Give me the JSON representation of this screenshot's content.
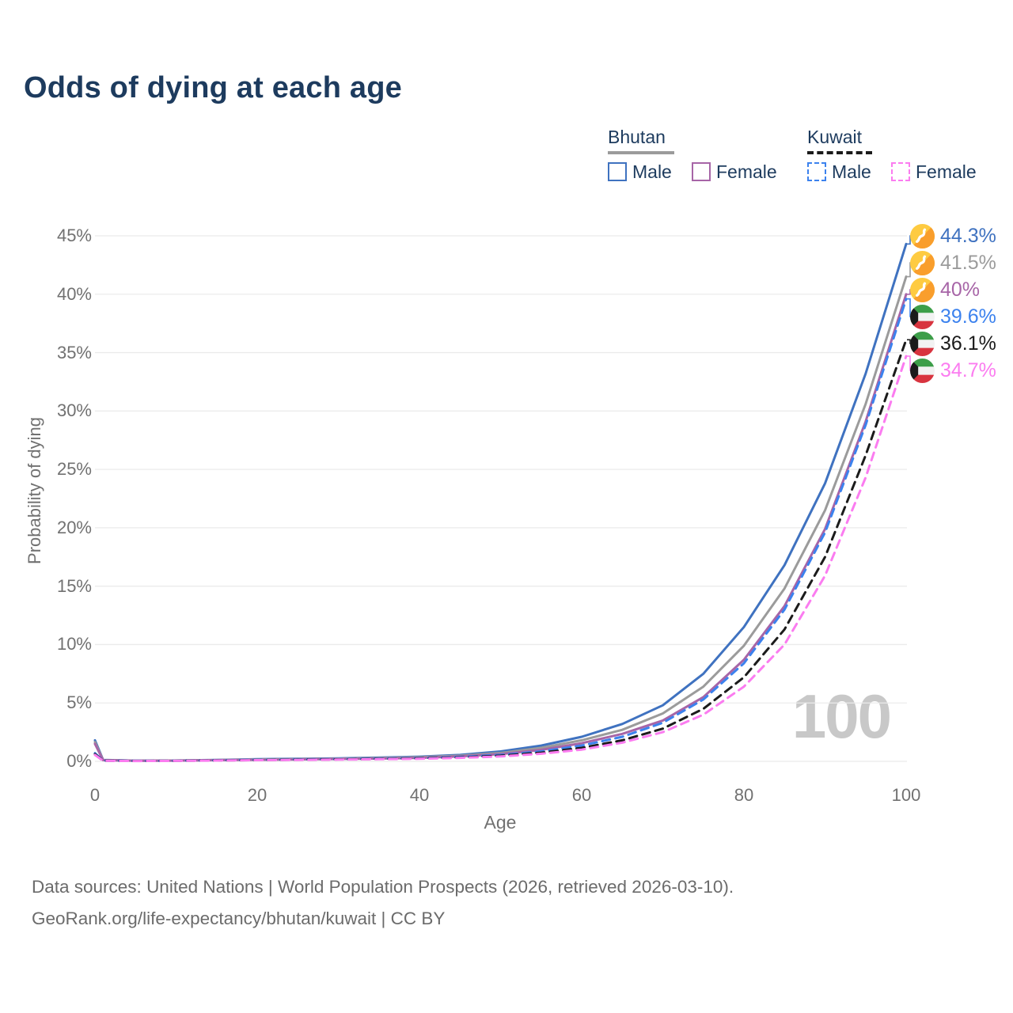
{
  "title": "Odds of dying at each age",
  "legend": {
    "groups": [
      {
        "name": "Bhutan",
        "line_style": "solid",
        "underline_color": "#9b9b9b",
        "items": [
          {
            "label": "Male",
            "color": "#3f72c0"
          },
          {
            "label": "Female",
            "color": "#a765a7"
          }
        ]
      },
      {
        "name": "Kuwait",
        "line_style": "dashed",
        "underline_color": "#1b1b1b",
        "items": [
          {
            "label": "Male",
            "color": "#3c82ee"
          },
          {
            "label": "Female",
            "color": "#fb7cf0"
          }
        ]
      }
    ]
  },
  "chart_data": {
    "type": "line",
    "title": "Odds of dying at each age",
    "xlabel": "Age",
    "ylabel": "Probability of dying",
    "xlim": [
      0,
      100
    ],
    "ylim": [
      0,
      45
    ],
    "x_ticks": [
      0,
      20,
      40,
      60,
      80,
      100
    ],
    "y_ticks": [
      0,
      5,
      10,
      15,
      20,
      25,
      30,
      35,
      40,
      45
    ],
    "y_tick_suffix": "%",
    "grid": "horizontal",
    "legend_position": "top-right",
    "watermark": "100",
    "ages": [
      0,
      1,
      5,
      10,
      15,
      20,
      25,
      30,
      35,
      40,
      45,
      50,
      55,
      60,
      65,
      70,
      75,
      80,
      85,
      90,
      95,
      100
    ],
    "series": [
      {
        "name": "Bhutan Male",
        "country": "Bhutan",
        "sex": "Male",
        "color": "#3f72c0",
        "dash": "solid",
        "flag": "bhutan",
        "end_label": "44.3%",
        "values": [
          1.8,
          0.12,
          0.06,
          0.07,
          0.12,
          0.18,
          0.22,
          0.26,
          0.32,
          0.4,
          0.55,
          0.85,
          1.35,
          2.1,
          3.2,
          4.8,
          7.5,
          11.5,
          16.8,
          23.8,
          33.2,
          44.3
        ]
      },
      {
        "name": "Bhutan Both sexes",
        "country": "Bhutan",
        "sex": "Both",
        "color": "#9b9b9b",
        "dash": "solid",
        "flag": "bhutan",
        "end_label": "41.5%",
        "values": [
          1.65,
          0.11,
          0.055,
          0.065,
          0.11,
          0.16,
          0.19,
          0.23,
          0.28,
          0.35,
          0.48,
          0.72,
          1.15,
          1.8,
          2.7,
          4.1,
          6.4,
          9.9,
          14.8,
          21.5,
          30.6,
          41.5
        ]
      },
      {
        "name": "Bhutan Female",
        "country": "Bhutan",
        "sex": "Female",
        "color": "#a765a7",
        "dash": "solid",
        "flag": "bhutan",
        "end_label": "40%",
        "values": [
          1.5,
          0.1,
          0.05,
          0.06,
          0.1,
          0.13,
          0.16,
          0.2,
          0.24,
          0.3,
          0.42,
          0.62,
          0.98,
          1.55,
          2.35,
          3.5,
          5.5,
          8.7,
          13.3,
          19.9,
          29.1,
          40
        ]
      },
      {
        "name": "Kuwait Male",
        "country": "Kuwait",
        "sex": "Male",
        "color": "#3c82ee",
        "dash": "dashed",
        "flag": "kuwait",
        "end_label": "39.6%",
        "values": [
          0.7,
          0.06,
          0.04,
          0.05,
          0.09,
          0.13,
          0.16,
          0.19,
          0.23,
          0.28,
          0.38,
          0.55,
          0.85,
          1.35,
          2.1,
          3.3,
          5.3,
          8.4,
          13.0,
          19.6,
          28.8,
          39.6
        ]
      },
      {
        "name": "Kuwait Both sexes",
        "country": "Kuwait",
        "sex": "Both",
        "color": "#1b1b1b",
        "dash": "dashed",
        "flag": "kuwait",
        "end_label": "36.1%",
        "values": [
          0.62,
          0.055,
          0.035,
          0.045,
          0.08,
          0.11,
          0.14,
          0.17,
          0.2,
          0.25,
          0.33,
          0.48,
          0.74,
          1.15,
          1.8,
          2.8,
          4.5,
          7.2,
          11.3,
          17.5,
          26.2,
          36.1
        ]
      },
      {
        "name": "Kuwait Female",
        "country": "Kuwait",
        "sex": "Female",
        "color": "#fb7cf0",
        "dash": "dashed",
        "flag": "kuwait",
        "end_label": "34.7%",
        "values": [
          0.55,
          0.05,
          0.03,
          0.04,
          0.07,
          0.1,
          0.12,
          0.15,
          0.18,
          0.22,
          0.3,
          0.42,
          0.65,
          1.0,
          1.6,
          2.5,
          4.0,
          6.4,
          10.0,
          15.9,
          24.3,
          34.7
        ]
      }
    ]
  },
  "footer": {
    "line1": "Data sources: United Nations | World Population Prospects (2026, retrieved 2026-03-10).",
    "line2": "GeoRank.org/life-expectancy/bhutan/kuwait | CC BY"
  }
}
